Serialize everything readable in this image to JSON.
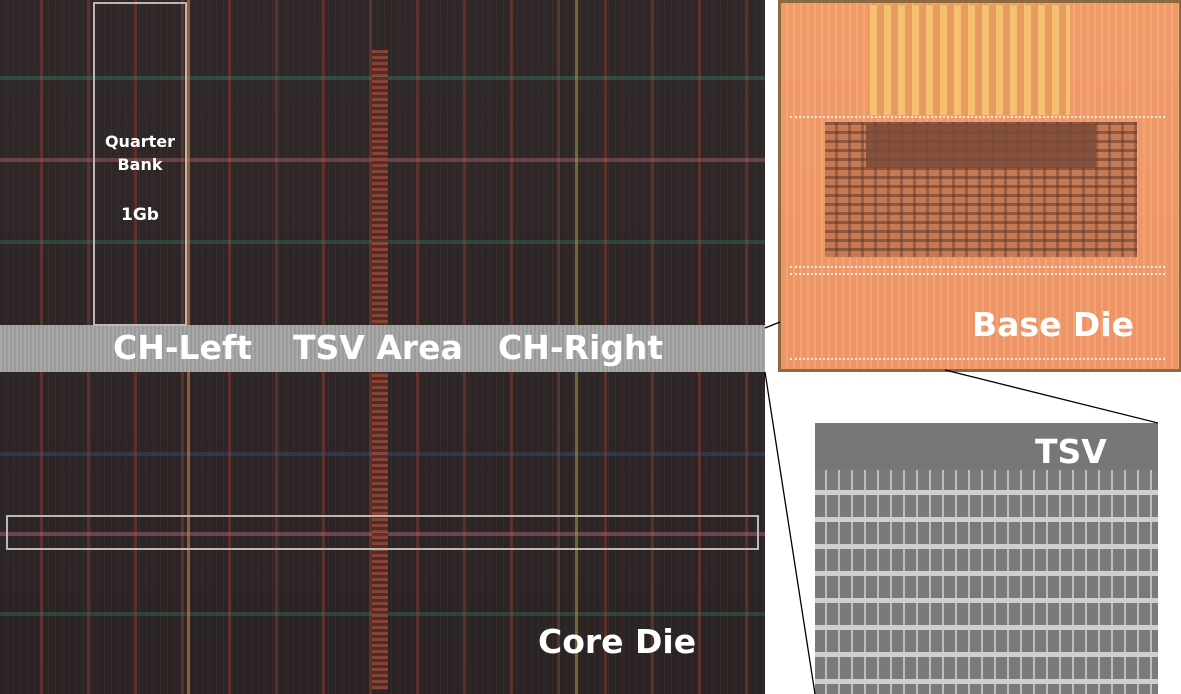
{
  "core_die": {
    "label": "Core Die",
    "quarter_bank": {
      "line1": "Quarter",
      "line2": "Bank",
      "capacity": "1Gb"
    },
    "tsv_band": {
      "left": "CH-Left",
      "center": "TSV Area",
      "right": "CH-Right"
    }
  },
  "base_die": {
    "label": "Base Die"
  },
  "tsv_sem": {
    "label": "TSV"
  },
  "colors": {
    "core_bg": "#2c2626",
    "band": "#a0a0a0",
    "base": "#ef966a",
    "sem": "#8a8a8a"
  }
}
